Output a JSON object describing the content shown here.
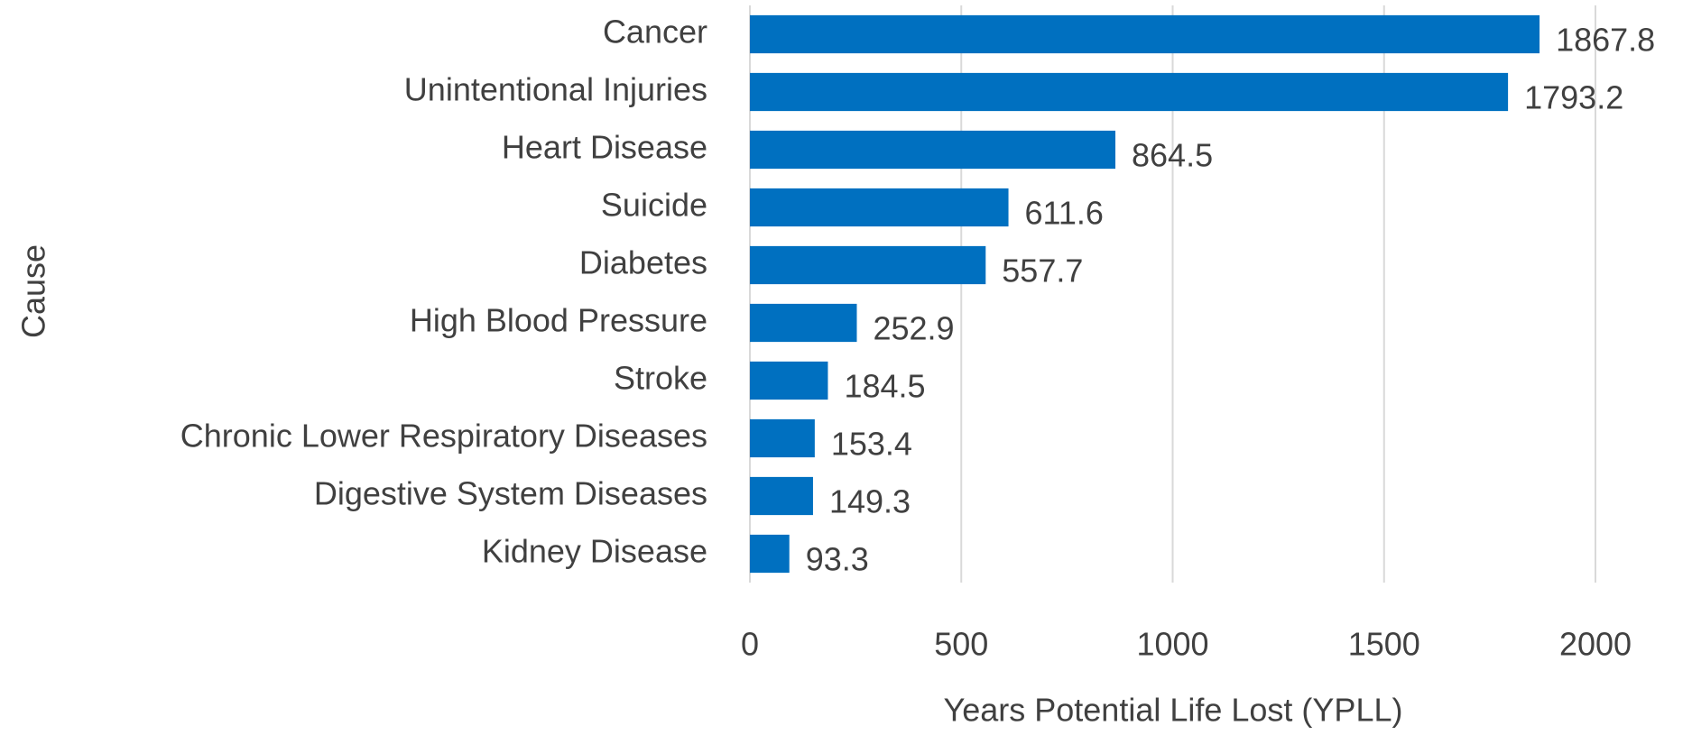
{
  "chart_data": {
    "type": "bar",
    "orientation": "horizontal",
    "categories": [
      "Cancer",
      "Unintentional Injuries",
      "Heart Disease",
      "Suicide",
      "Diabetes",
      "High Blood Pressure",
      "Stroke",
      "Chronic Lower Respiratory Diseases",
      "Digestive System Diseases",
      "Kidney Disease"
    ],
    "values": [
      1867.8,
      1793.2,
      864.5,
      611.6,
      557.7,
      252.9,
      184.5,
      153.4,
      149.3,
      93.3
    ],
    "color": "#0070c0",
    "x_label": "Years Potential Life Lost (YPLL)",
    "y_label": "Cause",
    "xlim": [
      0,
      2000
    ],
    "xticks": [
      0,
      500,
      1000,
      1500,
      2000
    ],
    "grid": true
  }
}
